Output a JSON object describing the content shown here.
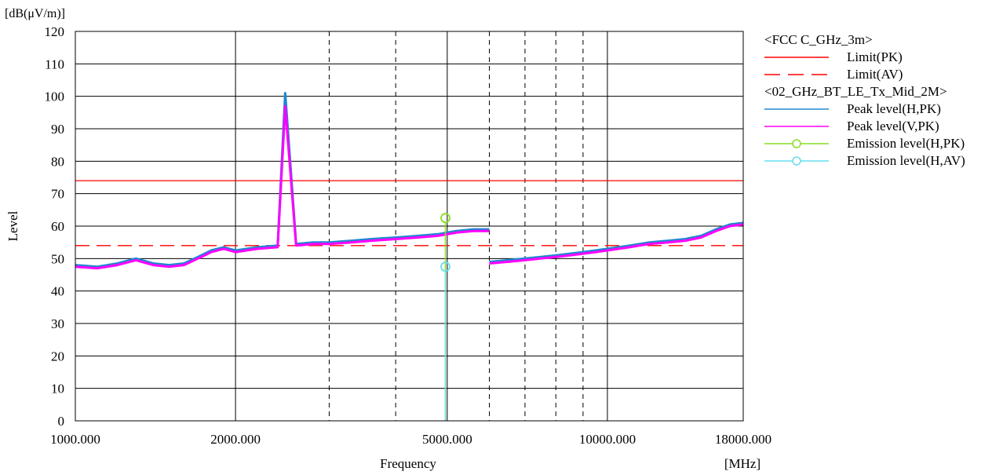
{
  "chart_data": {
    "type": "line",
    "title": "",
    "xlabel": "Frequency",
    "ylabel": "Level",
    "y_unit": "[dB(μV/m)]",
    "x_unit": "[MHz]",
    "x_scale": "log",
    "xlim": [
      1000,
      18000
    ],
    "ylim": [
      0,
      120
    ],
    "grid": true,
    "legend_position": "right",
    "y_ticks": [
      "0",
      "10",
      "20",
      "30",
      "40",
      "50",
      "60",
      "70",
      "80",
      "90",
      "100",
      "110",
      "120"
    ],
    "x_tick_labels": [
      {
        "value": 1000,
        "label": "1000.000"
      },
      {
        "value": 2000,
        "label": "2000.000"
      },
      {
        "value": 5000,
        "label": "5000.000"
      },
      {
        "value": 10000,
        "label": "10000.000"
      },
      {
        "value": 18000,
        "label": "18000.000"
      }
    ],
    "x_grid_solid": [
      2000,
      5000,
      10000
    ],
    "x_grid_dashed": [
      3000,
      4000,
      6000,
      7000,
      8000,
      9000
    ],
    "legend": {
      "groups": [
        {
          "header": "<FCC C_GHz_3m>",
          "entries": [
            {
              "key": "limit_pk",
              "label": "Limit(PK)",
              "color": "#ff0000",
              "style": "solid"
            },
            {
              "key": "limit_av",
              "label": "Limit(AV)",
              "color": "#ff0000",
              "style": "dashed"
            }
          ]
        },
        {
          "header": "<02_GHz_BT_LE_Tx_Mid_2M>",
          "entries": [
            {
              "key": "peak_h",
              "label": "Peak level(H,PK)",
              "color": "#1e88d0",
              "style": "solid"
            },
            {
              "key": "peak_v",
              "label": "Peak level(V,PK)",
              "color": "#ff00ff",
              "style": "solid"
            },
            {
              "key": "em_h_pk",
              "label": "Emission level(H,PK)",
              "color": "#88dd22",
              "style": "marker"
            },
            {
              "key": "em_h_av",
              "label": "Emission level(H,AV)",
              "color": "#66ddee",
              "style": "marker"
            }
          ]
        }
      ]
    },
    "series": [
      {
        "key": "limit_pk",
        "color": "#ff0000",
        "style": "solid",
        "x": [
          1000,
          18000
        ],
        "y": [
          74,
          74
        ]
      },
      {
        "key": "limit_av",
        "color": "#ff0000",
        "style": "dashed",
        "x": [
          1000,
          18000
        ],
        "y": [
          54,
          54
        ]
      },
      {
        "key": "peak_h",
        "color": "#1e88d0",
        "x": [
          1000,
          1100,
          1200,
          1300,
          1400,
          1500,
          1600,
          1700,
          1800,
          1900,
          2000,
          2200,
          2400,
          2480,
          2600,
          2800,
          3000,
          3300,
          3600,
          4000,
          4400,
          4800,
          5200,
          5600,
          6000
        ],
        "y": [
          48,
          47.5,
          48.5,
          50,
          48.5,
          48,
          48.5,
          50.5,
          52.5,
          53.5,
          52.5,
          53.5,
          54,
          101,
          54.5,
          55,
          55,
          55.5,
          56,
          56.5,
          57,
          57.5,
          58.5,
          59,
          59
        ]
      },
      {
        "key": "peak_v",
        "color": "#ff00ff",
        "x": [
          1000,
          1100,
          1200,
          1300,
          1400,
          1500,
          1600,
          1700,
          1800,
          1900,
          2000,
          2200,
          2400,
          2480,
          2600,
          2800,
          3000,
          3300,
          3600,
          4000,
          4400,
          4800,
          5200,
          5600,
          6000
        ],
        "y": [
          47.5,
          47,
          48,
          49.5,
          48,
          47.5,
          48,
          50,
          52,
          53,
          52,
          53,
          53.5,
          97,
          54,
          54.5,
          54.5,
          55,
          55.5,
          56,
          56.5,
          57,
          58,
          58.5,
          58.5
        ]
      },
      {
        "key": "peak_h_2",
        "color": "#1e88d0",
        "x": [
          6000,
          6500,
          7000,
          7500,
          8000,
          8500,
          9000,
          9500,
          10000,
          11000,
          12000,
          13000,
          14000,
          15000,
          16000,
          17000,
          18000
        ],
        "y": [
          49,
          49.5,
          50,
          50.5,
          51,
          51.5,
          52,
          52.5,
          53,
          54,
          55,
          55.5,
          56,
          57,
          59,
          60.5,
          61
        ]
      },
      {
        "key": "peak_v_2",
        "color": "#ff00ff",
        "x": [
          6000,
          6500,
          7000,
          7500,
          8000,
          8500,
          9000,
          9500,
          10000,
          11000,
          12000,
          13000,
          14000,
          15000,
          16000,
          17000,
          18000
        ],
        "y": [
          48.5,
          49,
          49.5,
          50,
          50.5,
          51,
          51.5,
          52,
          52.5,
          53.5,
          54.5,
          55,
          55.5,
          56.5,
          58.5,
          60,
          60.5
        ]
      }
    ],
    "emissions": [
      {
        "key": "em_h_pk",
        "color": "#88dd22",
        "x": 4960,
        "y": 62.5
      },
      {
        "key": "em_h_av",
        "color": "#66ddee",
        "x": 4960,
        "y": 47.5
      }
    ]
  }
}
